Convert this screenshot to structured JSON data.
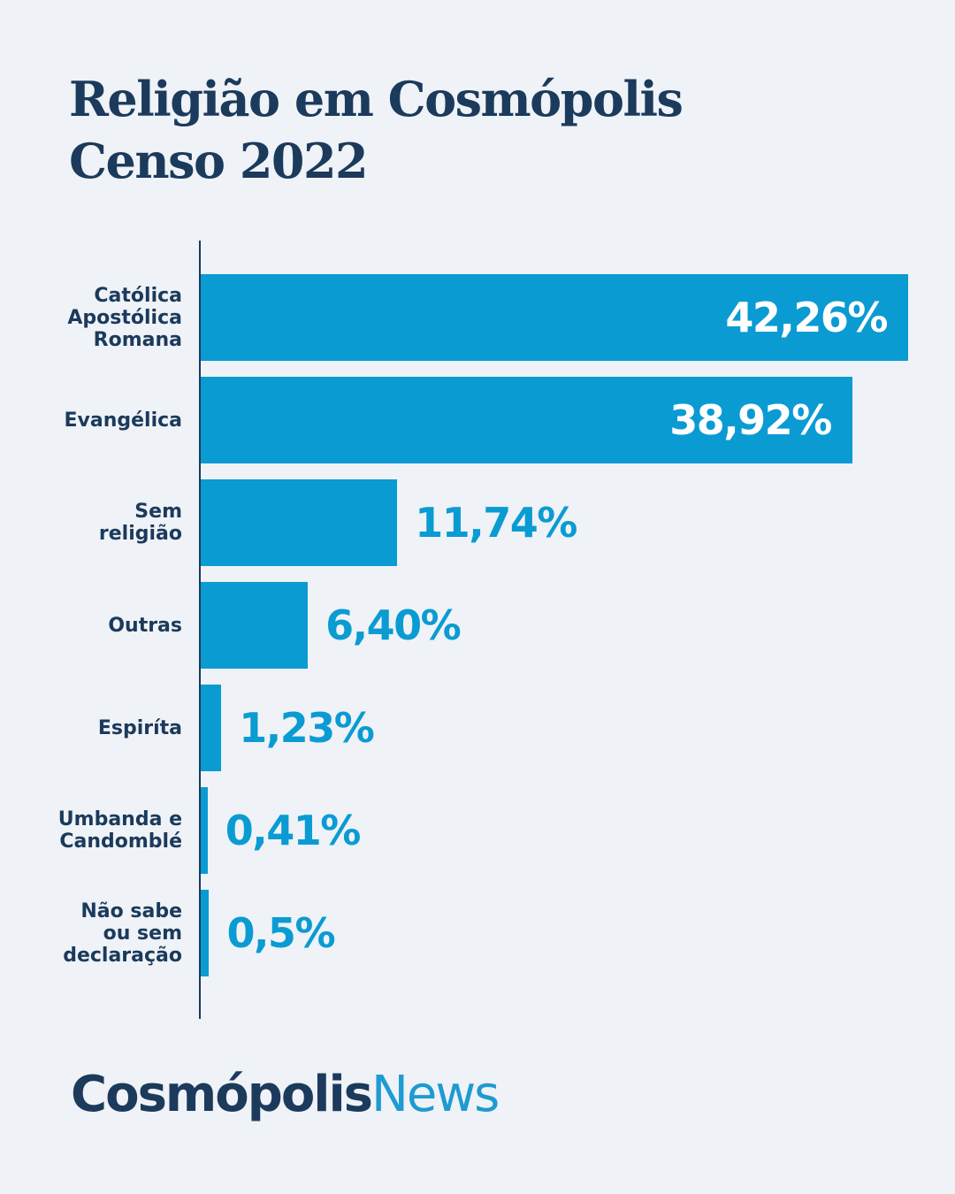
{
  "chart_data": {
    "type": "bar",
    "orientation": "horizontal",
    "title": "Religião em Cosmópolis",
    "subtitle": "Censo 2022",
    "categories": [
      "Católica Apostólica Romana",
      "Evangélica",
      "Sem religião",
      "Outras",
      "Espirítа",
      "Umbanda e Candomblé",
      "Não sabe ou sem declaração"
    ],
    "values": [
      42.26,
      38.92,
      11.74,
      6.4,
      1.23,
      0.41,
      0.5
    ],
    "value_labels": [
      "42,26%",
      "38,92%",
      "11,74%",
      "6,40%",
      "1,23%",
      "0,41%",
      "0,5%"
    ],
    "color": "#0a9bd3"
  },
  "brand": {
    "part1": "Cosmópolis",
    "part2": "News"
  }
}
